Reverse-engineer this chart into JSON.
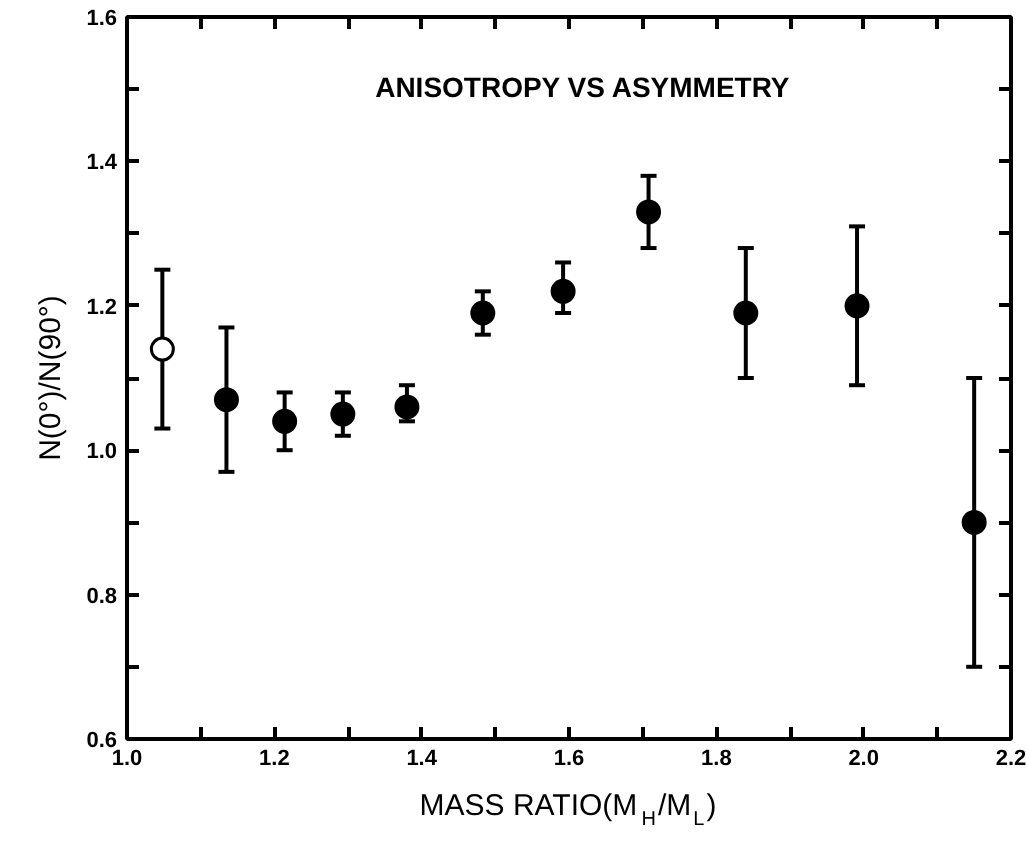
{
  "chart_data": {
    "type": "scatter",
    "title": "ANISOTROPY  VS ASYMMETRY",
    "xlabel": "MASS RATIO(M$_{H}$/M$_{L}$)",
    "ylabel": "N(0°)/N(90°)",
    "xlim": [
      1.0,
      2.2
    ],
    "ylim": [
      0.6,
      1.6
    ],
    "xticks": [
      {
        "value": 1.0,
        "label": "1.0"
      },
      {
        "value": 1.1,
        "label": null
      },
      {
        "value": 1.2,
        "label": "1.2"
      },
      {
        "value": 1.3,
        "label": null
      },
      {
        "value": 1.4,
        "label": "1.4"
      },
      {
        "value": 1.5,
        "label": null
      },
      {
        "value": 1.6,
        "label": "1.6"
      },
      {
        "value": 1.7,
        "label": null
      },
      {
        "value": 1.8,
        "label": "1.8"
      },
      {
        "value": 1.9,
        "label": null
      },
      {
        "value": 2.0,
        "label": "2.0"
      },
      {
        "value": 2.1,
        "label": null
      },
      {
        "value": 2.2,
        "label": "2.2"
      }
    ],
    "yticks": [
      {
        "value": 0.6,
        "label": "0.6"
      },
      {
        "value": 0.7,
        "label": null
      },
      {
        "value": 0.8,
        "label": "0.8"
      },
      {
        "value": 0.9,
        "label": null
      },
      {
        "value": 1.0,
        "label": "1.0"
      },
      {
        "value": 1.1,
        "label": null
      },
      {
        "value": 1.2,
        "label": "1.2"
      },
      {
        "value": 1.3,
        "label": null
      },
      {
        "value": 1.4,
        "label": "1.4"
      },
      {
        "value": 1.5,
        "label": null
      },
      {
        "value": 1.6,
        "label": "1.6"
      }
    ],
    "marker": "circle",
    "grid": false,
    "series": [
      {
        "color": "#ffffff",
        "x": [
          1.048
        ],
        "values": [
          1.14
        ],
        "errors": [
          [
            1.03,
            1.25
          ]
        ]
      },
      {
        "color": "#000000",
        "x": [
          1.135,
          1.214,
          1.293,
          1.38,
          1.483,
          1.592,
          1.708,
          1.84,
          1.991,
          2.15
        ],
        "values": [
          1.07,
          1.04,
          1.05,
          1.06,
          1.19,
          1.22,
          1.33,
          1.19,
          1.2,
          0.9
        ],
        "errors": [
          [
            0.97,
            1.17
          ],
          [
            1.0,
            1.08
          ],
          [
            1.02,
            1.08
          ],
          [
            1.04,
            1.09
          ],
          [
            1.16,
            1.22
          ],
          [
            1.19,
            1.26
          ],
          [
            1.28,
            1.38
          ],
          [
            1.1,
            1.28
          ],
          [
            1.09,
            1.31
          ],
          [
            0.7,
            1.1
          ]
        ]
      }
    ]
  }
}
